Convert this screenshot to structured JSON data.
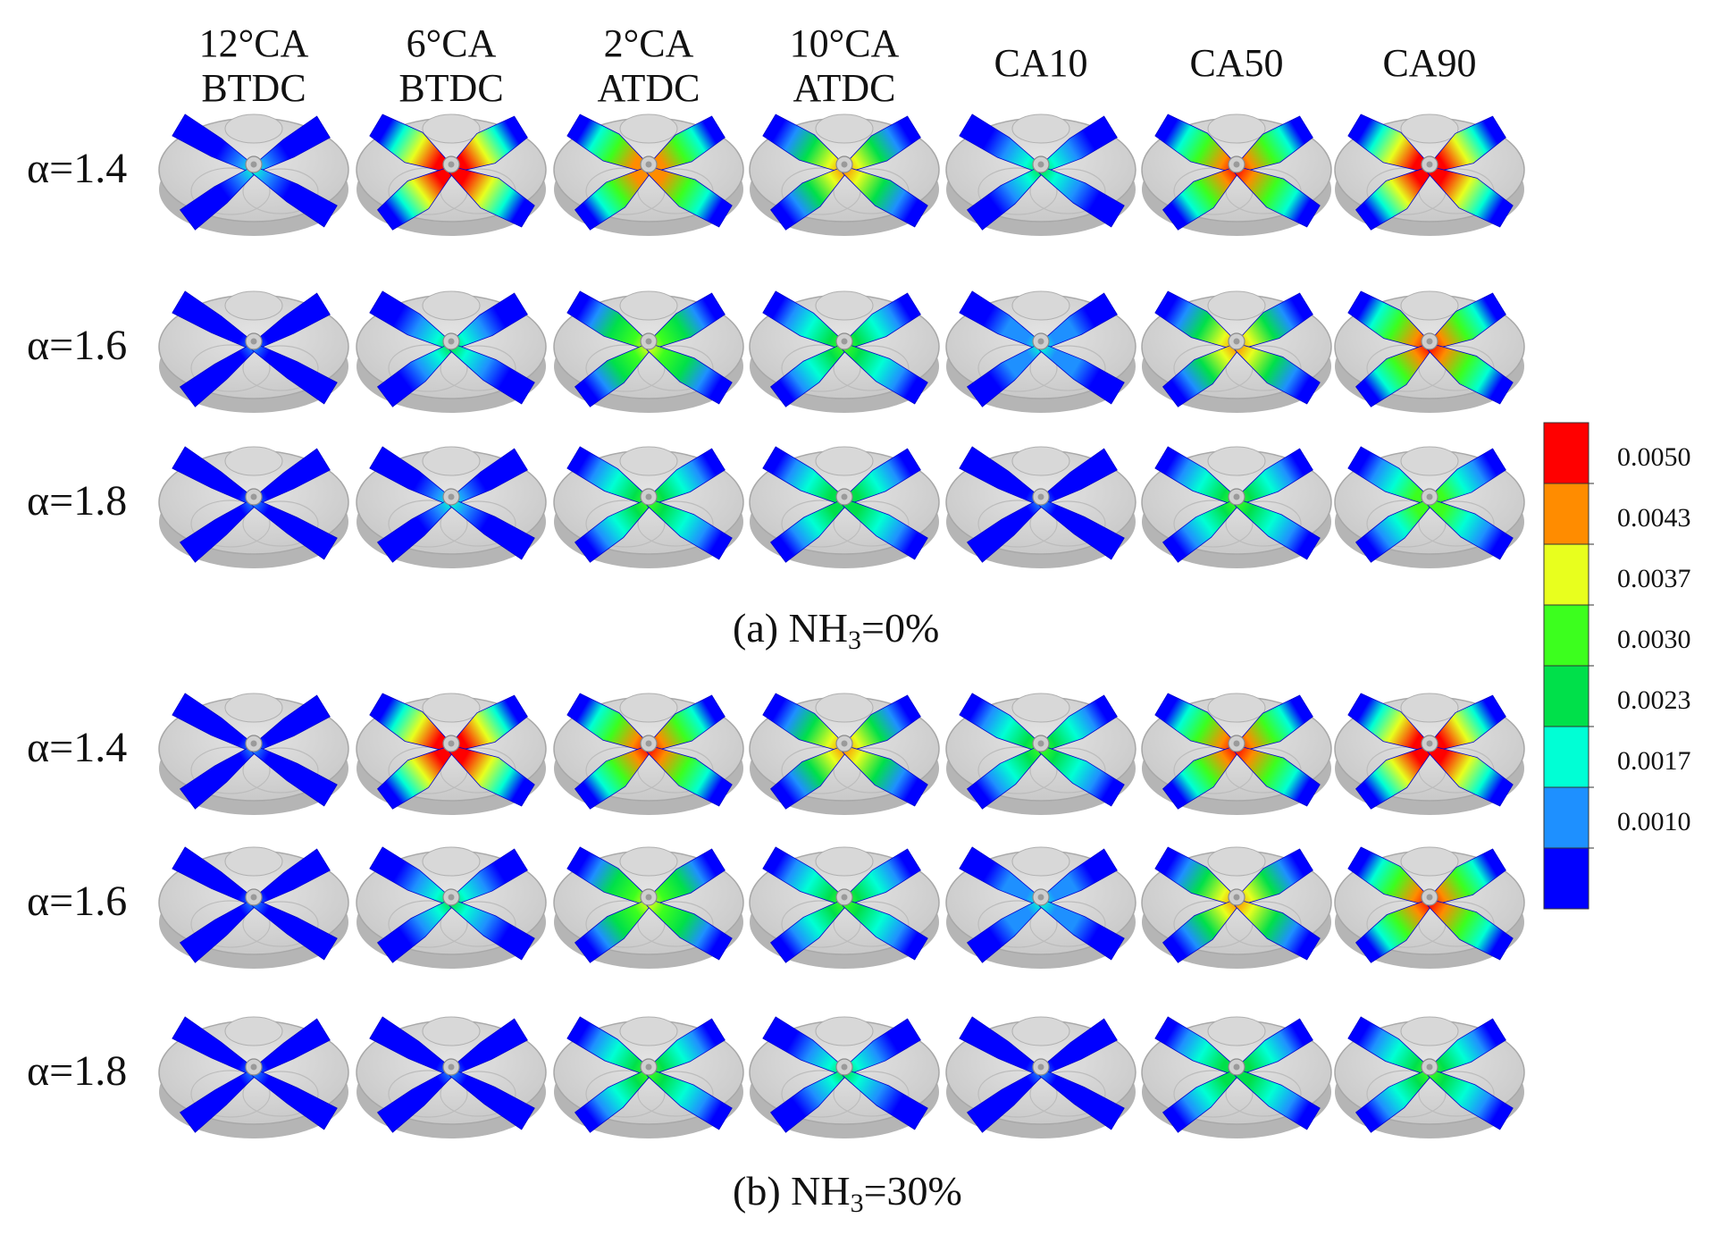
{
  "columns": [
    {
      "line1": "12°CA",
      "line2": "BTDC"
    },
    {
      "line1": "6°CA",
      "line2": "BTDC"
    },
    {
      "line1": "2°CA",
      "line2": "ATDC"
    },
    {
      "line1": "10°CA",
      "line2": "ATDC"
    },
    {
      "line1": "CA10",
      "line2": ""
    },
    {
      "line1": "CA50",
      "line2": ""
    },
    {
      "line1": "CA90",
      "line2": ""
    }
  ],
  "panels": [
    {
      "caption_prefix": "(a) NH",
      "caption_sub": "3",
      "caption_suffix": "=0%",
      "rows": [
        {
          "label": "α=1.4",
          "levels": [
            0.15,
            0.95,
            0.75,
            0.65,
            0.3,
            0.85,
            0.95
          ]
        },
        {
          "label": "α=1.6",
          "levels": [
            0.08,
            0.35,
            0.55,
            0.48,
            0.22,
            0.7,
            0.82
          ]
        },
        {
          "label": "α=1.8",
          "levels": [
            0.05,
            0.15,
            0.45,
            0.38,
            0.12,
            0.42,
            0.52
          ]
        }
      ]
    },
    {
      "caption_prefix": "(b) NH",
      "caption_sub": "3",
      "caption_suffix": "=30%",
      "rows": [
        {
          "label": "α=1.4",
          "levels": [
            0.12,
            0.92,
            0.78,
            0.7,
            0.45,
            0.85,
            0.93
          ]
        },
        {
          "label": "α=1.6",
          "levels": [
            0.08,
            0.3,
            0.55,
            0.45,
            0.2,
            0.68,
            0.8
          ]
        },
        {
          "label": "α=1.8",
          "levels": [
            0.04,
            0.12,
            0.4,
            0.3,
            0.1,
            0.38,
            0.45
          ]
        }
      ]
    }
  ],
  "colorbar": {
    "colors": [
      "#0000ff",
      "#1e90ff",
      "#00ffd5",
      "#00e04a",
      "#3cff1e",
      "#e8ff1e",
      "#ff8c00",
      "#ff0000"
    ],
    "ticks": [
      "0.0050",
      "0.0043",
      "0.0037",
      "0.0030",
      "0.0023",
      "0.0017",
      "0.0010"
    ]
  }
}
